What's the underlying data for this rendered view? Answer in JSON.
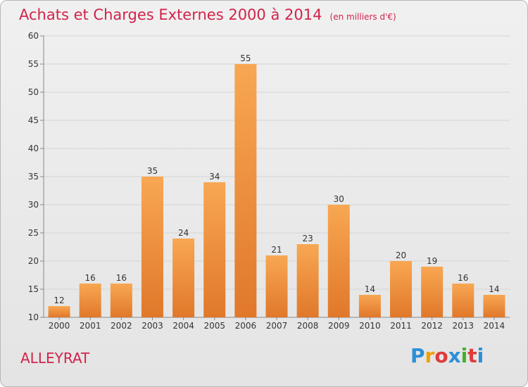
{
  "title": "Achats et Charges Externes 2000 à 2014",
  "unit": "(en milliers d'€)",
  "commune": "ALLEYRAT",
  "logo": {
    "letters": [
      {
        "ch": "P",
        "color": "#2b8fd6"
      },
      {
        "ch": "r",
        "color": "#f0a000"
      },
      {
        "ch": "o",
        "color": "#e03a3a"
      },
      {
        "ch": "x",
        "color": "#2b8fd6"
      },
      {
        "ch": "i",
        "color": "#43b02a"
      },
      {
        "ch": "t",
        "color": "#e03a3a"
      },
      {
        "ch": "i",
        "color": "#2b8fd6"
      }
    ]
  },
  "colors": {
    "title": "#d2234a",
    "bar_top": "#f8a752",
    "bar_bottom": "#e0782a",
    "grid": "#d4d4d4",
    "axis": "#888888"
  },
  "chart_data": {
    "type": "bar",
    "title": "Achats et Charges Externes 2000 à 2014",
    "xlabel": "",
    "ylabel": "",
    "ylim": [
      10,
      60
    ],
    "yticks": [
      10,
      15,
      20,
      25,
      30,
      35,
      40,
      45,
      50,
      55,
      60
    ],
    "grid": true,
    "categories": [
      "2000",
      "2001",
      "2002",
      "2003",
      "2004",
      "2005",
      "2006",
      "2007",
      "2008",
      "2009",
      "2010",
      "2011",
      "2012",
      "2013",
      "2014"
    ],
    "values": [
      12,
      16,
      16,
      35,
      24,
      34,
      55,
      21,
      23,
      30,
      14,
      20,
      19,
      16,
      14
    ]
  }
}
